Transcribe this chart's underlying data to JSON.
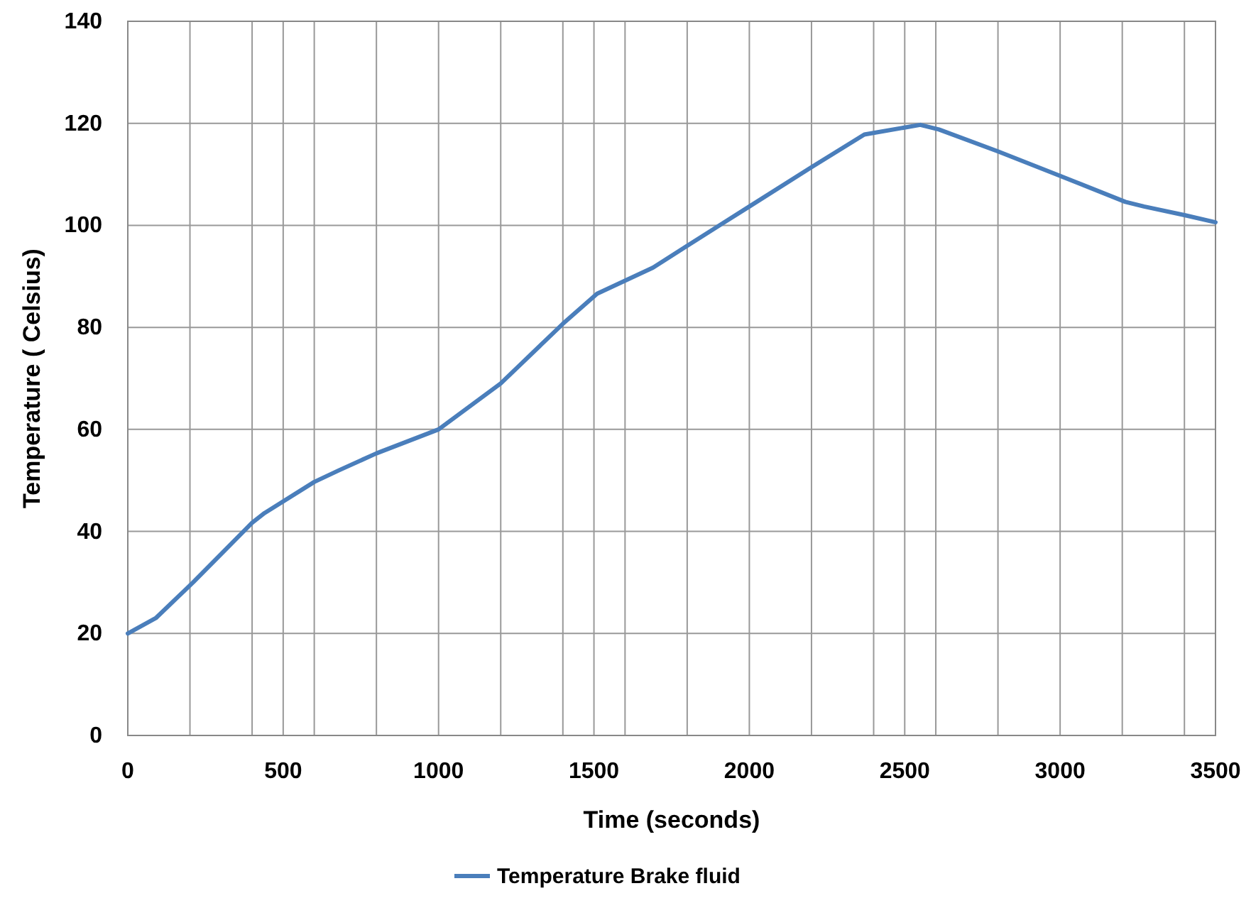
{
  "chart_data": {
    "type": "line",
    "xlabel": "Time (seconds)",
    "ylabel": "Temperature ( Celsius)",
    "xlim": [
      0,
      3500
    ],
    "ylim": [
      0,
      140
    ],
    "xticks": [
      0,
      {
        "value": 200,
        "label": null
      },
      {
        "value": 400,
        "label": null
      },
      500,
      {
        "value": 600,
        "label": null
      },
      {
        "value": 800,
        "label": null
      },
      1000,
      {
        "value": 1200,
        "label": null
      },
      {
        "value": 1400,
        "label": null
      },
      1500,
      {
        "value": 1600,
        "label": null
      },
      {
        "value": 1800,
        "label": null
      },
      2000,
      {
        "value": 2200,
        "label": null
      },
      {
        "value": 2400,
        "label": null
      },
      2500,
      {
        "value": 2600,
        "label": null
      },
      {
        "value": 2800,
        "label": null
      },
      3000,
      {
        "value": 3200,
        "label": null
      },
      {
        "value": 3400,
        "label": null
      },
      3500
    ],
    "yticks": [
      0,
      20,
      40,
      60,
      80,
      100,
      120,
      140
    ],
    "grid": true,
    "legend": "bottom",
    "marker": "none",
    "line_style": "solid",
    "series": [
      {
        "name": "Temperature Brake fluid",
        "color": "#4a7ebb",
        "x": [
          0,
          90,
          210,
          400,
          440,
          600,
          680,
          800,
          1000,
          1200,
          1400,
          1510,
          1690,
          1800,
          2000,
          2200,
          2370,
          2550,
          2610,
          2800,
          3000,
          3210,
          3270,
          3400,
          3500
        ],
        "values": [
          20,
          23,
          30,
          41.7,
          43.6,
          49.7,
          52,
          55.3,
          60,
          69,
          80.7,
          86.6,
          91.7,
          96,
          103.7,
          111.4,
          117.8,
          119.7,
          118.8,
          114.5,
          109.7,
          104.6,
          103.7,
          102,
          100.6
        ]
      }
    ]
  }
}
